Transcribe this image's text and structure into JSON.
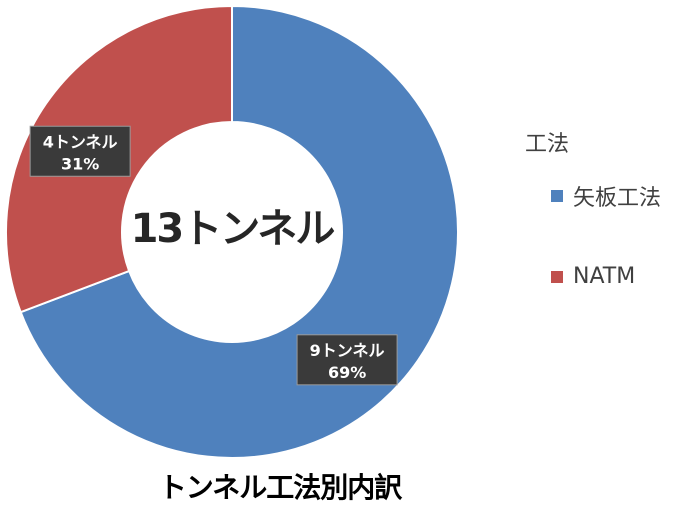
{
  "chart_data": {
    "type": "pie",
    "title": "トンネル工法別内訳",
    "center_label": "13トンネル",
    "legend_title": "工法",
    "legend_position": "right",
    "series": [
      {
        "name": "矢板工法",
        "value": 9,
        "value_label": "9トンネル",
        "percent_label": "69%",
        "color": "#4F81BD"
      },
      {
        "name": "NATM",
        "value": 4,
        "value_label": "4トンネル",
        "percent_label": "31%",
        "color": "#C0504D"
      }
    ]
  }
}
